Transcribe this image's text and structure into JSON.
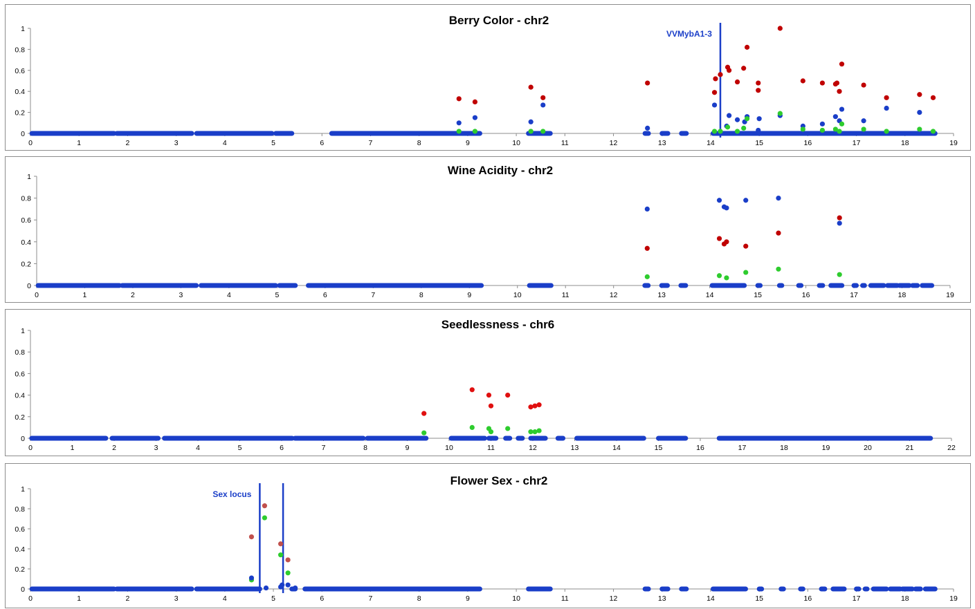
{
  "colors": {
    "blue": "#1a3ec8",
    "red": "#c00000",
    "bright_red": "#e01010",
    "green": "#2ecc2e",
    "brown_red": "#c0504d",
    "annotation": "#1a3ec8",
    "axis": "#8c8c8c"
  },
  "chart_data": [
    {
      "type": "scatter",
      "title": "Berry Color - chr2",
      "xlim": [
        0,
        19
      ],
      "ylim": [
        0,
        1
      ],
      "xticks": [
        0,
        1,
        2,
        3,
        4,
        5,
        6,
        7,
        8,
        9,
        10,
        11,
        12,
        13,
        14,
        15,
        16,
        17,
        18,
        19
      ],
      "yticks": [
        0,
        0.2,
        0.4,
        0.6,
        0.8,
        1
      ],
      "annotations": [
        {
          "label": "VVMybA1-3",
          "x": 14.2,
          "label_position": "left"
        }
      ],
      "baseline_segments": [
        [
          0.03,
          1.72
        ],
        [
          1.78,
          3.32
        ],
        [
          3.42,
          4.97
        ],
        [
          5.05,
          5.38
        ],
        [
          6.2,
          9.25
        ],
        [
          10.25,
          10.7
        ],
        [
          12.65,
          12.72
        ],
        [
          13.0,
          13.12
        ],
        [
          13.4,
          13.5
        ],
        [
          14.05,
          18.62
        ]
      ],
      "series": [
        {
          "color": "red",
          "points": [
            [
              8.82,
              0.33
            ],
            [
              9.15,
              0.3
            ],
            [
              10.3,
              0.44
            ],
            [
              10.55,
              0.34
            ],
            [
              12.7,
              0.48
            ],
            [
              14.08,
              0.39
            ],
            [
              14.1,
              0.52
            ],
            [
              14.2,
              0.56
            ],
            [
              14.35,
              0.63
            ],
            [
              14.38,
              0.6
            ],
            [
              14.55,
              0.49
            ],
            [
              14.68,
              0.62
            ],
            [
              14.75,
              0.82
            ],
            [
              14.98,
              0.48
            ],
            [
              14.98,
              0.41
            ],
            [
              15.43,
              1.0
            ],
            [
              15.9,
              0.5
            ],
            [
              16.3,
              0.48
            ],
            [
              16.57,
              0.47
            ],
            [
              16.6,
              0.48
            ],
            [
              16.65,
              0.4
            ],
            [
              16.7,
              0.66
            ],
            [
              17.15,
              0.46
            ],
            [
              17.62,
              0.34
            ],
            [
              18.3,
              0.37
            ],
            [
              18.58,
              0.34
            ]
          ]
        },
        {
          "color": "blue",
          "points": [
            [
              8.82,
              0.1
            ],
            [
              9.15,
              0.15
            ],
            [
              10.3,
              0.11
            ],
            [
              10.55,
              0.27
            ],
            [
              12.7,
              0.05
            ],
            [
              14.08,
              0.27
            ],
            [
              14.33,
              0.07
            ],
            [
              14.38,
              0.17
            ],
            [
              14.55,
              0.13
            ],
            [
              14.7,
              0.11
            ],
            [
              14.75,
              0.16
            ],
            [
              14.98,
              0.03
            ],
            [
              15.0,
              0.14
            ],
            [
              15.43,
              0.17
            ],
            [
              15.9,
              0.07
            ],
            [
              16.3,
              0.09
            ],
            [
              16.57,
              0.16
            ],
            [
              16.65,
              0.12
            ],
            [
              16.7,
              0.23
            ],
            [
              17.15,
              0.12
            ],
            [
              17.62,
              0.24
            ],
            [
              18.3,
              0.2
            ]
          ]
        },
        {
          "color": "green",
          "points": [
            [
              8.82,
              0.02
            ],
            [
              9.15,
              0.02
            ],
            [
              10.3,
              0.02
            ],
            [
              10.55,
              0.02
            ],
            [
              14.08,
              0.02
            ],
            [
              14.2,
              0.02
            ],
            [
              14.35,
              0.06
            ],
            [
              14.55,
              0.02
            ],
            [
              14.68,
              0.05
            ],
            [
              14.75,
              0.14
            ],
            [
              15.43,
              0.19
            ],
            [
              15.9,
              0.04
            ],
            [
              16.3,
              0.03
            ],
            [
              16.57,
              0.04
            ],
            [
              16.65,
              0.02
            ],
            [
              16.7,
              0.09
            ],
            [
              17.15,
              0.04
            ],
            [
              17.62,
              0.02
            ],
            [
              18.3,
              0.04
            ],
            [
              18.58,
              0.02
            ]
          ]
        }
      ]
    },
    {
      "type": "scatter",
      "title": "Wine Acidity - chr2",
      "xlim": [
        0,
        19
      ],
      "ylim": [
        0,
        1
      ],
      "xticks": [
        0,
        1,
        2,
        3,
        4,
        5,
        6,
        7,
        8,
        9,
        10,
        11,
        12,
        13,
        14,
        15,
        16,
        17,
        18,
        19
      ],
      "yticks": [
        0,
        0.2,
        0.4,
        0.6,
        0.8,
        1
      ],
      "annotations": [],
      "baseline_segments": [
        [
          0.03,
          1.72
        ],
        [
          1.78,
          3.32
        ],
        [
          3.42,
          4.97
        ],
        [
          5.05,
          5.38
        ],
        [
          5.65,
          9.25
        ],
        [
          10.25,
          10.7
        ],
        [
          12.65,
          12.72
        ],
        [
          13.0,
          13.12
        ],
        [
          13.4,
          13.5
        ],
        [
          14.05,
          14.72
        ],
        [
          15.0,
          15.05
        ],
        [
          15.45,
          15.5
        ],
        [
          15.85,
          15.9
        ],
        [
          16.28,
          16.35
        ],
        [
          16.52,
          16.75
        ],
        [
          17.0,
          17.05
        ],
        [
          17.18,
          17.22
        ],
        [
          17.35,
          17.62
        ],
        [
          17.7,
          17.9
        ],
        [
          17.95,
          18.15
        ],
        [
          18.22,
          18.32
        ],
        [
          18.42,
          18.62
        ]
      ],
      "series": [
        {
          "color": "blue",
          "points": [
            [
              12.7,
              0.7
            ],
            [
              14.2,
              0.78
            ],
            [
              14.3,
              0.72
            ],
            [
              14.35,
              0.71
            ],
            [
              14.75,
              0.78
            ],
            [
              15.43,
              0.8
            ],
            [
              16.7,
              0.57
            ]
          ]
        },
        {
          "color": "red",
          "points": [
            [
              12.7,
              0.34
            ],
            [
              14.2,
              0.43
            ],
            [
              14.3,
              0.38
            ],
            [
              14.35,
              0.4
            ],
            [
              14.75,
              0.36
            ],
            [
              15.43,
              0.48
            ],
            [
              16.7,
              0.62
            ]
          ]
        },
        {
          "color": "green",
          "points": [
            [
              12.7,
              0.08
            ],
            [
              14.2,
              0.09
            ],
            [
              14.35,
              0.07
            ],
            [
              14.75,
              0.12
            ],
            [
              15.43,
              0.15
            ],
            [
              16.7,
              0.1
            ]
          ]
        }
      ]
    },
    {
      "type": "scatter",
      "title": "Seedlessness - chr6",
      "xlim": [
        0,
        22
      ],
      "ylim": [
        0,
        1
      ],
      "xticks": [
        0,
        1,
        2,
        3,
        4,
        5,
        6,
        7,
        8,
        9,
        10,
        11,
        12,
        13,
        14,
        15,
        16,
        17,
        18,
        19,
        20,
        21,
        22
      ],
      "yticks": [
        0,
        0.2,
        0.4,
        0.6,
        0.8,
        1
      ],
      "annotations": [],
      "baseline_segments": [
        [
          0.03,
          1.8
        ],
        [
          1.95,
          3.05
        ],
        [
          3.2,
          6.25
        ],
        [
          6.32,
          7.95
        ],
        [
          8.05,
          9.45
        ],
        [
          10.05,
          10.85
        ],
        [
          10.95,
          11.12
        ],
        [
          11.35,
          11.45
        ],
        [
          11.65,
          11.75
        ],
        [
          11.95,
          12.3
        ],
        [
          12.6,
          12.72
        ],
        [
          13.05,
          14.65
        ],
        [
          15.0,
          15.65
        ],
        [
          16.45,
          21.5
        ]
      ],
      "series": [
        {
          "color": "bright_red",
          "points": [
            [
              9.4,
              0.23
            ],
            [
              10.55,
              0.45
            ],
            [
              10.95,
              0.4
            ],
            [
              11.0,
              0.3
            ],
            [
              11.4,
              0.4
            ],
            [
              11.95,
              0.29
            ],
            [
              12.05,
              0.3
            ],
            [
              12.15,
              0.31
            ]
          ]
        },
        {
          "color": "green",
          "points": [
            [
              9.4,
              0.05
            ],
            [
              10.55,
              0.1
            ],
            [
              10.95,
              0.09
            ],
            [
              11.0,
              0.06
            ],
            [
              11.4,
              0.09
            ],
            [
              11.95,
              0.06
            ],
            [
              12.05,
              0.06
            ],
            [
              12.15,
              0.07
            ]
          ]
        }
      ]
    },
    {
      "type": "scatter",
      "title": "Flower Sex - chr2",
      "xlim": [
        0,
        19
      ],
      "ylim": [
        0,
        1
      ],
      "xticks": [
        0,
        1,
        2,
        3,
        4,
        5,
        6,
        7,
        8,
        9,
        10,
        11,
        12,
        13,
        14,
        15,
        16,
        17,
        18,
        19
      ],
      "yticks": [
        0,
        0.2,
        0.4,
        0.6,
        0.8,
        1
      ],
      "annotations": [
        {
          "label": "Sex locus",
          "x": 4.72,
          "x2": 5.2,
          "label_position": "left"
        }
      ],
      "baseline_segments": [
        [
          0.03,
          1.72
        ],
        [
          1.78,
          3.32
        ],
        [
          3.42,
          4.72
        ],
        [
          5.38,
          5.45
        ],
        [
          5.65,
          9.25
        ],
        [
          10.25,
          10.7
        ],
        [
          12.65,
          12.72
        ],
        [
          13.0,
          13.12
        ],
        [
          13.4,
          13.5
        ],
        [
          14.05,
          14.72
        ],
        [
          15.0,
          15.05
        ],
        [
          15.45,
          15.5
        ],
        [
          15.85,
          15.9
        ],
        [
          16.28,
          16.35
        ],
        [
          16.52,
          16.75
        ],
        [
          17.0,
          17.05
        ],
        [
          17.18,
          17.22
        ],
        [
          17.35,
          17.62
        ],
        [
          17.7,
          17.9
        ],
        [
          17.95,
          18.15
        ],
        [
          18.22,
          18.32
        ],
        [
          18.42,
          18.62
        ]
      ],
      "series": [
        {
          "color": "brown_red",
          "points": [
            [
              4.55,
              0.52
            ],
            [
              4.82,
              0.83
            ],
            [
              5.15,
              0.45
            ],
            [
              5.3,
              0.29
            ]
          ]
        },
        {
          "color": "green",
          "points": [
            [
              4.55,
              0.09
            ],
            [
              4.82,
              0.71
            ],
            [
              5.15,
              0.34
            ],
            [
              5.3,
              0.16
            ]
          ]
        },
        {
          "color": "blue",
          "points": [
            [
              4.55,
              0.11
            ],
            [
              5.15,
              0.02
            ],
            [
              5.18,
              0.04
            ],
            [
              5.3,
              0.04
            ],
            [
              4.85,
              0.01
            ],
            [
              5.45,
              0.01
            ]
          ]
        }
      ]
    }
  ]
}
